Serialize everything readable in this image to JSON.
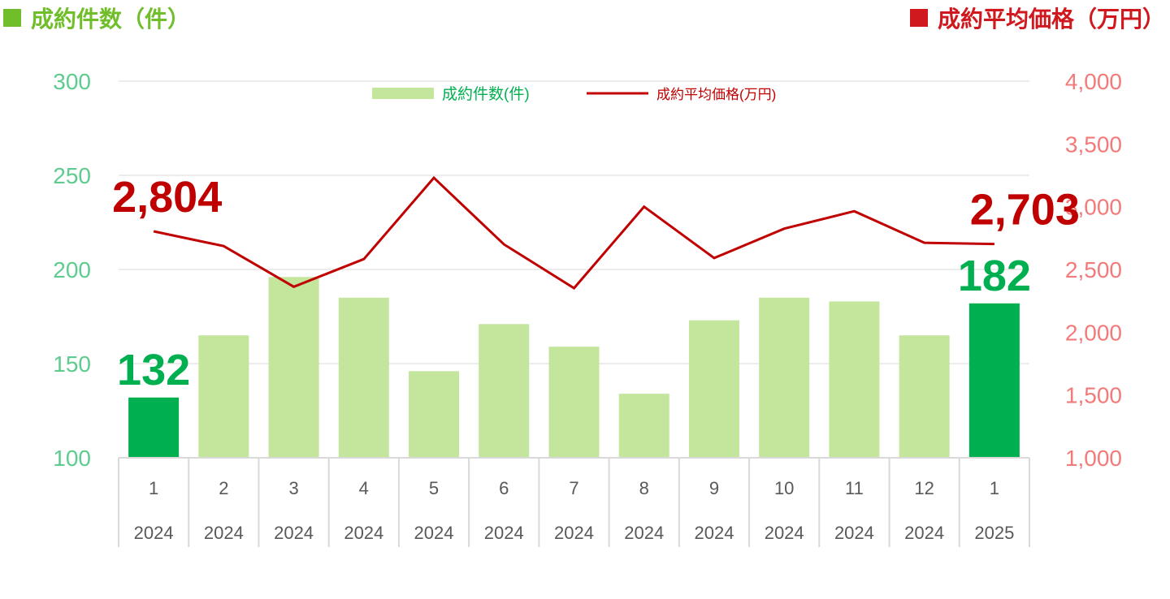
{
  "header": {
    "left_title": "成約件数（件）",
    "right_title": "成約平均価格（万円）"
  },
  "colors": {
    "bar_highlight": "#00b050",
    "bar_normal": "#c3e59c",
    "line": "#c00000",
    "left_axis": "#5ecb8f",
    "right_axis": "#f27a7a",
    "header_left": "#6fbe2a",
    "header_right": "#d0191f"
  },
  "chart_data": {
    "type": "bar",
    "categories": [
      "1",
      "2",
      "3",
      "4",
      "5",
      "6",
      "7",
      "8",
      "9",
      "10",
      "11",
      "12",
      "1"
    ],
    "years": [
      "2024",
      "2024",
      "2024",
      "2024",
      "2024",
      "2024",
      "2024",
      "2024",
      "2024",
      "2024",
      "2024",
      "2024",
      "2025"
    ],
    "series": [
      {
        "name": "成約件数(件)",
        "type": "bar",
        "axis": "left",
        "values": [
          132,
          165,
          196,
          185,
          146,
          171,
          159,
          134,
          173,
          185,
          183,
          165,
          182
        ],
        "highlight_indices": [
          0,
          12
        ]
      },
      {
        "name": "成約平均価格(万円)",
        "type": "line",
        "axis": "right",
        "values": [
          2804,
          2686,
          2362,
          2583,
          3230,
          2700,
          2351,
          3000,
          2591,
          2825,
          2964,
          2713,
          2703
        ]
      }
    ],
    "left_axis": {
      "ylim": [
        100,
        300
      ],
      "ticks": [
        "100",
        "150",
        "200",
        "250",
        "300"
      ]
    },
    "right_axis": {
      "ylim": [
        1000,
        4000
      ],
      "ticks": [
        "1,000",
        "1,500",
        "2,000",
        "2,500",
        "3,000",
        "3,500",
        "4,000"
      ]
    },
    "annotations": [
      {
        "series": "bar",
        "index": 0,
        "text": "132"
      },
      {
        "series": "bar",
        "index": 12,
        "text": "182"
      },
      {
        "series": "line",
        "index": 0,
        "text": "2,804"
      },
      {
        "series": "line",
        "index": 12,
        "text": "2,703"
      }
    ],
    "grid": true,
    "legend": "top-center"
  }
}
